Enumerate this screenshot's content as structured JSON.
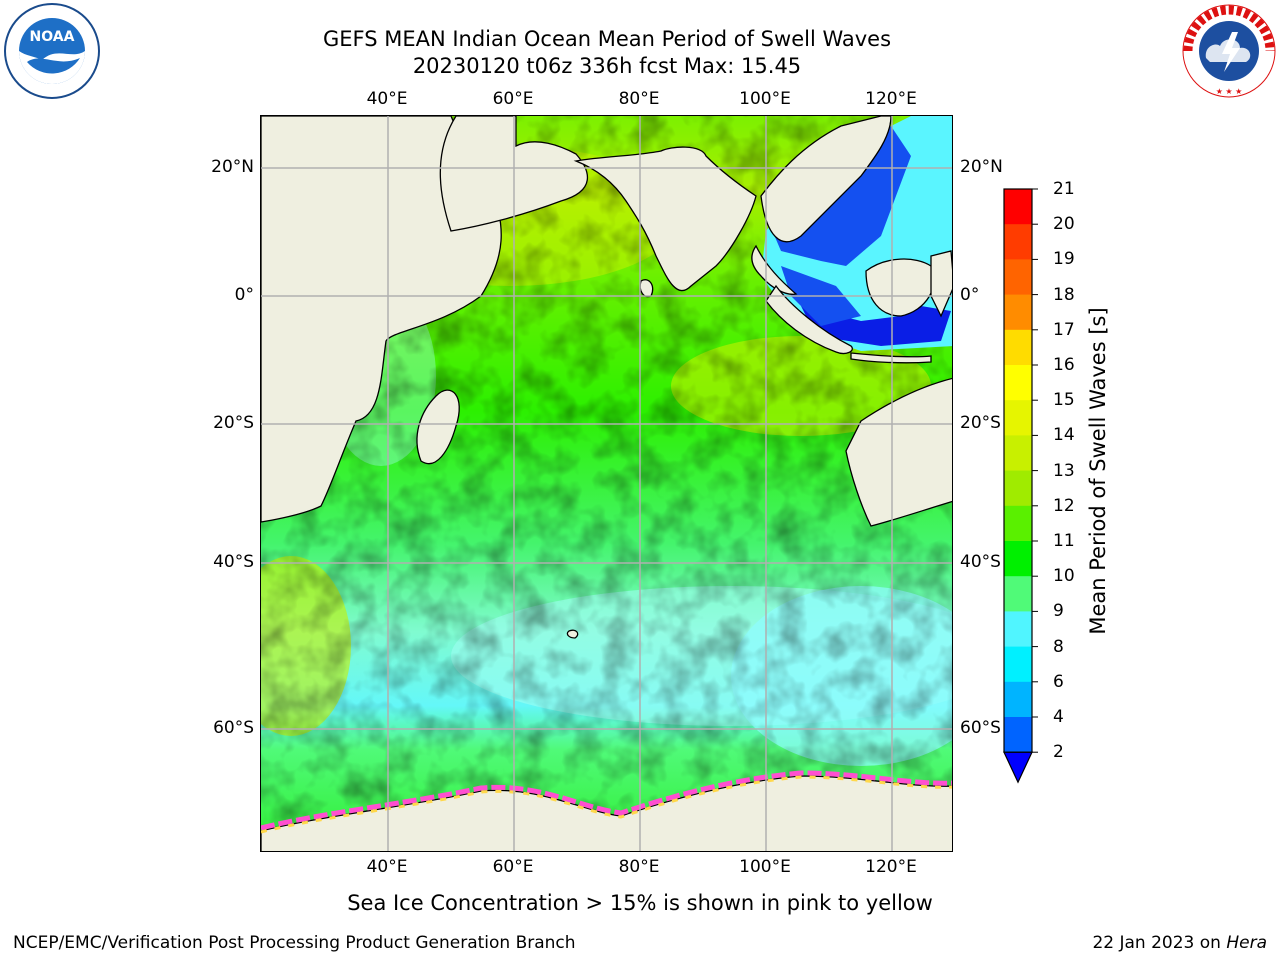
{
  "title": {
    "line1": "GEFS MEAN Indian Ocean Mean Period of Swell Waves",
    "line2": "20230120 t06z 336h fcst   Max: 15.45"
  },
  "logos": {
    "left": {
      "text": "NOAA",
      "ring_text": "NATIONAL OCEANIC AND ATMOSPHERIC ADMINISTRATION · U.S. DEPARTMENT OF COMMERCE",
      "icon": "noaa-logo"
    },
    "right": {
      "ring_text": "NATIONAL WEATHER SERVICE",
      "icon": "nws-logo"
    }
  },
  "map": {
    "lon_ticks": [
      "40°E",
      "60°E",
      "80°E",
      "100°E",
      "120°E"
    ],
    "lat_ticks": [
      "20°N",
      "0°",
      "20°S",
      "40°S",
      "60°S"
    ],
    "land_color": "#efefe0",
    "grid_color": "#b0b0b0"
  },
  "colorbar": {
    "title": "Mean Period of Swell Waves [s]",
    "ticks": [
      "21",
      "20",
      "19",
      "18",
      "17",
      "16",
      "15",
      "14",
      "13",
      "12",
      "11",
      "10",
      "9",
      "8",
      "6",
      "4",
      "2"
    ],
    "colors": [
      "#ff0000",
      "#ff3c00",
      "#ff6400",
      "#ff8c00",
      "#ffb400",
      "#ffdc00",
      "#ffff00",
      "#e6f500",
      "#c8f000",
      "#a0eb00",
      "#5af000",
      "#00f000",
      "#50fa78",
      "#a0ffff",
      "#50f5ff",
      "#00f0ff",
      "#00b4ff",
      "#0064ff",
      "#0000ff"
    ]
  },
  "note": "Sea Ice Concentration > 15% is shown in pink to yellow",
  "footer": {
    "left": "NCEP/EMC/Verification Post Processing Product Generation Branch",
    "right_prefix": "22 Jan 2023 on ",
    "right_machine": "Hera"
  }
}
